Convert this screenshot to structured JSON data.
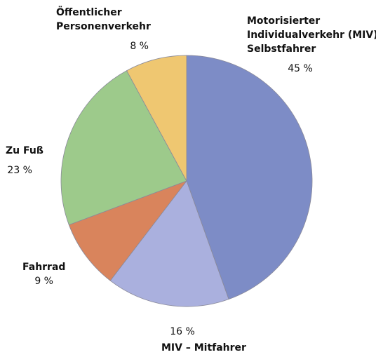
{
  "chart_data": {
    "type": "pie",
    "categories": [
      [
        "Motorisierter",
        "Individualverkehr (MIV)",
        "Selbstfahrer"
      ],
      [
        "MIV – Mitfahrer"
      ],
      [
        "Fahrrad"
      ],
      [
        "Zu Fuß"
      ],
      [
        "Öffentlicher",
        "Personenverkehr"
      ]
    ],
    "values": [
      45,
      16,
      9,
      23,
      8
    ],
    "value_labels": [
      "45 %",
      "16 %",
      "9 %",
      "23 %",
      "8 %"
    ],
    "colors": [
      "#7d8cc6",
      "#aab0de",
      "#d9845c",
      "#9dca8b",
      "#efc771"
    ]
  }
}
